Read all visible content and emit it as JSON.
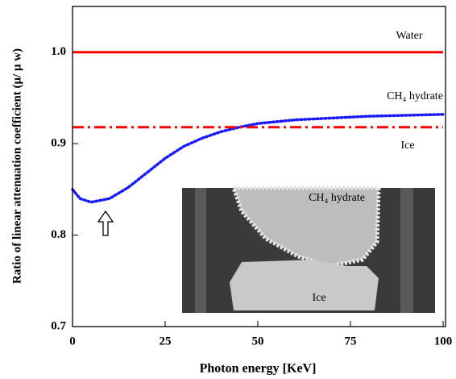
{
  "chart_data": {
    "type": "line",
    "xlabel": "Photon energy [KeV]",
    "ylabel": "Ratio of linear attenuation coefficient (μ/ μ w)",
    "x": [
      0,
      2,
      5,
      10,
      15,
      20,
      25,
      30,
      35,
      40,
      45,
      50,
      60,
      70,
      80,
      90,
      100
    ],
    "series": [
      {
        "name": "Water",
        "color": "#ff0000",
        "style": "solid",
        "values": [
          1,
          1,
          1,
          1,
          1,
          1,
          1,
          1,
          1,
          1,
          1,
          1,
          1,
          1,
          1,
          1,
          1
        ]
      },
      {
        "name": "CH₄ hydrate",
        "color": "#1a1aff",
        "style": "dotted",
        "values": [
          0.85,
          0.84,
          0.836,
          0.84,
          0.852,
          0.868,
          0.884,
          0.897,
          0.906,
          0.913,
          0.918,
          0.922,
          0.926,
          0.928,
          0.93,
          0.931,
          0.932
        ]
      },
      {
        "name": "Ice",
        "color": "#ff0000",
        "style": "dashdot",
        "values": [
          0.918,
          0.918,
          0.918,
          0.918,
          0.918,
          0.918,
          0.918,
          0.918,
          0.918,
          0.918,
          0.918,
          0.918,
          0.918,
          0.918,
          0.918,
          0.918,
          0.918
        ]
      }
    ],
    "xlim": [
      0,
      100
    ],
    "xticks": [
      0,
      25,
      50,
      75,
      100
    ],
    "ylim": [
      0.7,
      1.05
    ],
    "yticks": [
      0.7,
      0.8,
      0.9,
      {
        "value": 1,
        "label": "1.0"
      }
    ],
    "inset_labels": [
      "CH₄ hydrate",
      "Ice"
    ]
  }
}
